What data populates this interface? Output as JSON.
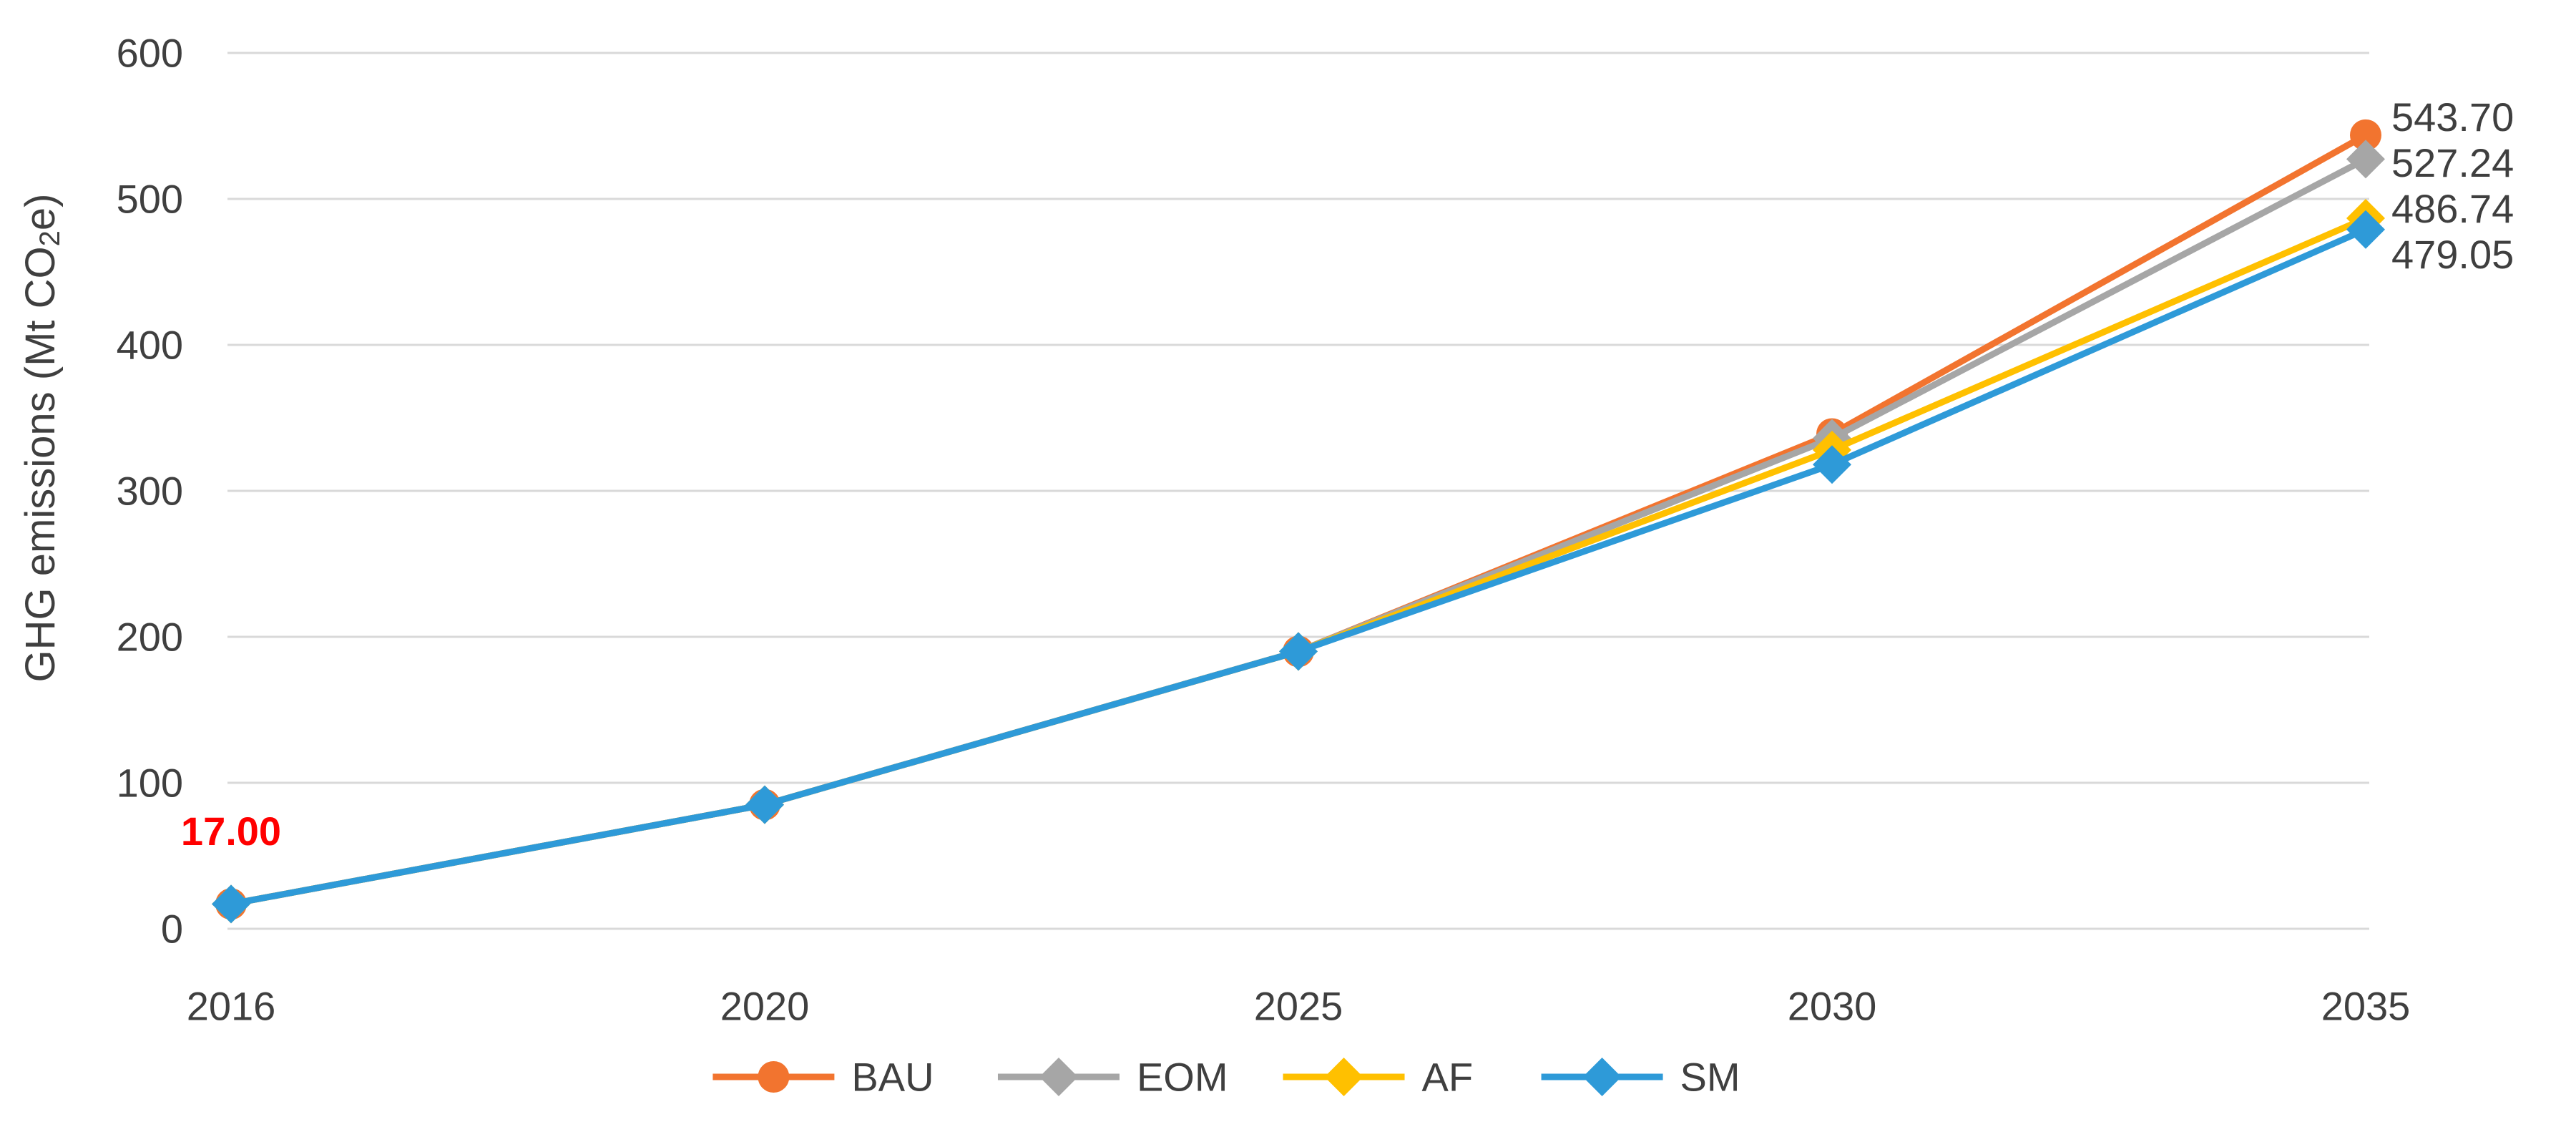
{
  "chart_data": {
    "type": "line",
    "title": "",
    "xlabel": "",
    "ylabel": "GHG emissions (Mt CO2e)",
    "ylabel_parts": [
      {
        "text": "GHG emissions (Mt CO",
        "sub": false
      },
      {
        "text": "2",
        "sub": true
      },
      {
        "text": "e)",
        "sub": false
      }
    ],
    "x_categories": [
      "2016",
      "2020",
      "2025",
      "2030",
      "2035"
    ],
    "yticks": [
      "0",
      "100",
      "200",
      "300",
      "400",
      "500",
      "600"
    ],
    "ylim": [
      0,
      600
    ],
    "grid": true,
    "legend_position": "bottom",
    "series": [
      {
        "name": "BAU",
        "marker": "circle",
        "color": "#F2742F",
        "values": [
          17.0,
          85,
          190,
          339,
          543.7
        ]
      },
      {
        "name": "EOM",
        "marker": "diamond",
        "color": "#A6A6A6",
        "values": [
          17.0,
          85,
          190,
          336,
          527.24
        ]
      },
      {
        "name": "AF",
        "marker": "diamond",
        "color": "#FFC000",
        "values": [
          17.0,
          85,
          190,
          328,
          486.74
        ]
      },
      {
        "name": "SM",
        "marker": "diamond",
        "color": "#2E9AD8",
        "values": [
          17.0,
          85,
          190,
          318,
          479.05
        ]
      }
    ],
    "end_labels": [
      {
        "series": "BAU",
        "text": "543.70",
        "value": 543.7
      },
      {
        "series": "EOM",
        "text": "527.24",
        "value": 527.24
      },
      {
        "series": "AF",
        "text": "486.74",
        "value": 486.74
      },
      {
        "series": "SM",
        "text": "479.05",
        "value": 479.05
      }
    ],
    "annotations": [
      {
        "text": "17.00",
        "color": "#FF0000",
        "bold": true,
        "category_index": 0,
        "value": 17.0,
        "placement": "above-point"
      }
    ],
    "colors": {
      "gridline": "#D9D9D9",
      "text": "#3F3F3F",
      "background": "#FFFFFF",
      "annotation_red": "#FF0000"
    }
  }
}
